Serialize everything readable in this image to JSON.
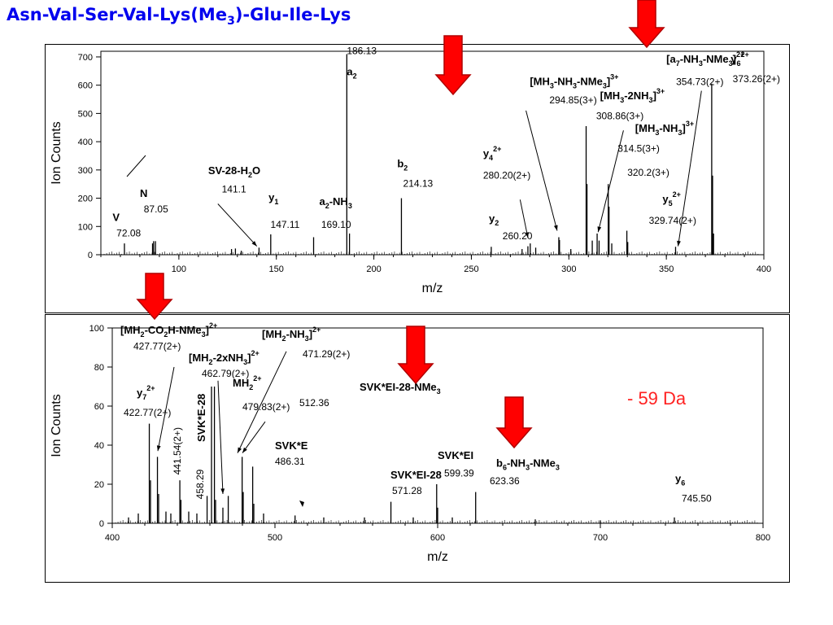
{
  "slide_title": {
    "p1": "Asn-Val-Ser-Val-Lys(Me",
    "sub": "3",
    "p2": ")-Glu-Ile-Lys"
  },
  "da_label": "- 59 Da",
  "chart_data": [
    {
      "type": "bar",
      "xlabel": "m/z",
      "ylabel": "Ion Counts",
      "xlim": [
        60,
        400
      ],
      "ylim": [
        0,
        720
      ],
      "xticks": [
        100,
        150,
        200,
        250,
        300,
        350,
        400
      ],
      "yticks": [
        0,
        100,
        200,
        300,
        400,
        500,
        600,
        700
      ],
      "peaks": [
        {
          "x": 72.08,
          "y": 40
        },
        {
          "x": 86.5,
          "y": 40
        },
        {
          "x": 87.05,
          "y": 48
        },
        {
          "x": 88,
          "y": 48
        },
        {
          "x": 127,
          "y": 20
        },
        {
          "x": 129,
          "y": 22
        },
        {
          "x": 132,
          "y": 14
        },
        {
          "x": 141.1,
          "y": 25
        },
        {
          "x": 147.11,
          "y": 72
        },
        {
          "x": 169.1,
          "y": 62
        },
        {
          "x": 186.13,
          "y": 710
        },
        {
          "x": 187.5,
          "y": 75
        },
        {
          "x": 214.13,
          "y": 200
        },
        {
          "x": 260.2,
          "y": 28
        },
        {
          "x": 276,
          "y": 20
        },
        {
          "x": 279,
          "y": 30
        },
        {
          "x": 280.2,
          "y": 40
        },
        {
          "x": 283,
          "y": 25
        },
        {
          "x": 294.85,
          "y": 62
        },
        {
          "x": 295.2,
          "y": 52
        },
        {
          "x": 301,
          "y": 20
        },
        {
          "x": 308.86,
          "y": 455
        },
        {
          "x": 309.3,
          "y": 250
        },
        {
          "x": 312,
          "y": 50
        },
        {
          "x": 314.5,
          "y": 75
        },
        {
          "x": 315.5,
          "y": 50
        },
        {
          "x": 320.2,
          "y": 250
        },
        {
          "x": 320.6,
          "y": 170
        },
        {
          "x": 322,
          "y": 40
        },
        {
          "x": 329.74,
          "y": 85
        },
        {
          "x": 330.2,
          "y": 45
        },
        {
          "x": 354.73,
          "y": 28
        },
        {
          "x": 373.26,
          "y": 605
        },
        {
          "x": 373.7,
          "y": 280
        },
        {
          "x": 374.2,
          "y": 75
        }
      ],
      "annotations": [
        {
          "text": "186.13",
          "x": 186.13,
          "y": 710,
          "kind": "value"
        },
        {
          "text": "a",
          "sub": "2",
          "x": 186.13,
          "y": 635,
          "kind": "label"
        },
        {
          "text": "[MH",
          "sub": "3",
          "text2": "-NH",
          "sub2": "3",
          "text3": "-NMe",
          "sub3": "3",
          "text4": "]",
          "sup": "3+",
          "x": 280,
          "y": 600,
          "kind": "label"
        },
        {
          "text": "294.85(3+)",
          "x": 290,
          "y": 535,
          "kind": "value"
        },
        {
          "text": "[a",
          "sub": "7",
          "text2": "-NH",
          "sub2": "3",
          "text3": "-NMe",
          "sub3": "3",
          "text4": "]",
          "sup": "2+",
          "x": 350,
          "y": 680,
          "kind": "label"
        },
        {
          "text": "354.73(2+)",
          "x": 355,
          "y": 600,
          "kind": "value"
        },
        {
          "text": "y",
          "sub": "6",
          "sup": "2+",
          "x": 383,
          "y": 680,
          "kind": "label"
        },
        {
          "text": "373.26(2+)",
          "x": 384,
          "y": 610,
          "kind": "value"
        },
        {
          "text": "[MH",
          "sub": "3",
          "text2": "-2NH",
          "sub2": "3",
          "text4": "]",
          "sup": "3+",
          "x": 316,
          "y": 550,
          "kind": "label"
        },
        {
          "text": "308.86(3+)",
          "x": 314,
          "y": 480,
          "kind": "value"
        },
        {
          "text": "[MH",
          "sub": "3",
          "text2": "-NH",
          "sub2": "3",
          "text4": "]",
          "sup": "3+",
          "x": 334,
          "y": 435,
          "kind": "label"
        },
        {
          "text": "314.5(3+)",
          "x": 325,
          "y": 365,
          "kind": "value"
        },
        {
          "text": "320.2(3+)",
          "x": 330,
          "y": 280,
          "kind": "value"
        },
        {
          "text": "y",
          "sub": "4",
          "sup": "2+",
          "x": 256,
          "y": 345,
          "kind": "label"
        },
        {
          "text": "280.20(2+)",
          "x": 256,
          "y": 270,
          "kind": "value"
        },
        {
          "text": "b",
          "sub": "2",
          "x": 212,
          "y": 310,
          "kind": "label"
        },
        {
          "text": "214.13",
          "x": 215,
          "y": 240,
          "kind": "value"
        },
        {
          "text": "y",
          "sub": "5",
          "sup": "2+",
          "x": 348,
          "y": 185,
          "kind": "label"
        },
        {
          "text": "329.74(2+)",
          "x": 341,
          "y": 110,
          "kind": "value"
        },
        {
          "text": "y",
          "sub": "2",
          "x": 259,
          "y": 115,
          "kind": "label"
        },
        {
          "text": "260.20",
          "x": 266,
          "y": 55,
          "kind": "value"
        },
        {
          "text": "SV-28-H",
          "sub": "2",
          "text2": "O",
          "x": 115,
          "y": 285,
          "kind": "label"
        },
        {
          "text": "141.1",
          "x": 122,
          "y": 220,
          "kind": "value"
        },
        {
          "text": "y",
          "sub": "1",
          "x": 146,
          "y": 190,
          "kind": "label"
        },
        {
          "text": "147.11",
          "x": 147,
          "y": 95,
          "kind": "value"
        },
        {
          "text": "a",
          "sub": "2",
          "text2": "-NH",
          "sub2": "3",
          "x": 172,
          "y": 175,
          "kind": "label"
        },
        {
          "text": "169.10",
          "x": 173,
          "y": 95,
          "kind": "value"
        },
        {
          "text": "N",
          "x": 80,
          "y": 205,
          "kind": "label"
        },
        {
          "text": "87.05",
          "x": 82,
          "y": 150,
          "kind": "value"
        },
        {
          "text": "V",
          "x": 66,
          "y": 120,
          "kind": "label"
        },
        {
          "text": "72.08",
          "x": 68,
          "y": 65,
          "kind": "value"
        }
      ]
    },
    {
      "type": "bar",
      "xlabel": "m/z",
      "ylabel": "Ion Counts",
      "xlim": [
        400,
        800
      ],
      "ylim": [
        0,
        100
      ],
      "xticks": [
        400,
        500,
        600,
        700,
        800
      ],
      "yticks": [
        0,
        20,
        40,
        60,
        80,
        100
      ],
      "peaks": [
        {
          "x": 410,
          "y": 3
        },
        {
          "x": 416,
          "y": 5
        },
        {
          "x": 422.77,
          "y": 51
        },
        {
          "x": 423.5,
          "y": 22
        },
        {
          "x": 427.77,
          "y": 34
        },
        {
          "x": 428.5,
          "y": 15
        },
        {
          "x": 433,
          "y": 6
        },
        {
          "x": 436,
          "y": 5
        },
        {
          "x": 441.54,
          "y": 22
        },
        {
          "x": 442.2,
          "y": 12
        },
        {
          "x": 447,
          "y": 6
        },
        {
          "x": 452,
          "y": 5
        },
        {
          "x": 458.29,
          "y": 14
        },
        {
          "x": 461,
          "y": 70
        },
        {
          "x": 462.79,
          "y": 70
        },
        {
          "x": 463.5,
          "y": 12
        },
        {
          "x": 468,
          "y": 8
        },
        {
          "x": 471.29,
          "y": 14
        },
        {
          "x": 479.83,
          "y": 34
        },
        {
          "x": 480.5,
          "y": 16
        },
        {
          "x": 486.31,
          "y": 29
        },
        {
          "x": 487,
          "y": 10
        },
        {
          "x": 493,
          "y": 5
        },
        {
          "x": 512.36,
          "y": 4
        },
        {
          "x": 530,
          "y": 3
        },
        {
          "x": 555,
          "y": 3
        },
        {
          "x": 571.28,
          "y": 11
        },
        {
          "x": 585,
          "y": 3
        },
        {
          "x": 599.39,
          "y": 20
        },
        {
          "x": 600,
          "y": 8
        },
        {
          "x": 609,
          "y": 3
        },
        {
          "x": 623.36,
          "y": 16
        },
        {
          "x": 660,
          "y": 2
        },
        {
          "x": 700,
          "y": 1.5
        },
        {
          "x": 745.5,
          "y": 3
        }
      ],
      "annotations": [
        {
          "text": "[MH",
          "sub": "2",
          "text2": "-CO",
          "sub2": "2",
          "text3": "H-NMe",
          "sub3": "3",
          "text4": "]",
          "sup": "2+",
          "x": 405,
          "y": 97,
          "kind": "label"
        },
        {
          "text": "427.77(2+)",
          "x": 413,
          "y": 89,
          "kind": "value"
        },
        {
          "text": "[MH",
          "sub": "2",
          "text2": "-2xNH",
          "sub2": "3",
          "text4": "]",
          "sup": "2+",
          "x": 447,
          "y": 83,
          "kind": "label"
        },
        {
          "text": "462.79(2+)",
          "x": 455,
          "y": 75,
          "kind": "value"
        },
        {
          "text": "[MH",
          "sub": "2",
          "text2": "-NH",
          "sub2": "3",
          "text4": "]",
          "sup": "2+",
          "x": 492,
          "y": 95,
          "kind": "label"
        },
        {
          "text": "471.29(2+)",
          "x": 517,
          "y": 85,
          "kind": "value"
        },
        {
          "text": "MH",
          "sub": "2",
          "sup": "2+",
          "x": 474,
          "y": 70,
          "kind": "label"
        },
        {
          "text": "479.83(2+)",
          "x": 480,
          "y": 58,
          "kind": "value"
        },
        {
          "text": "SVK*EI-28-NMe",
          "sub": "3",
          "x": 552,
          "y": 68,
          "kind": "label"
        },
        {
          "text": "512.36",
          "x": 515,
          "y": 60,
          "kind": "value"
        },
        {
          "text": "y",
          "sub": "7",
          "sup": "2+",
          "x": 415,
          "y": 65,
          "kind": "label"
        },
        {
          "text": "422.77(2+)",
          "x": 407,
          "y": 55,
          "kind": "value"
        },
        {
          "text": "SVK*E",
          "x": 500,
          "y": 38,
          "kind": "label"
        },
        {
          "text": "486.31",
          "x": 500,
          "y": 30,
          "kind": "value"
        },
        {
          "text": "SVK*EI",
          "x": 600,
          "y": 33,
          "kind": "label"
        },
        {
          "text": "599.39",
          "x": 604,
          "y": 24,
          "kind": "value"
        },
        {
          "text": "SVK*EI-28",
          "x": 571,
          "y": 23,
          "kind": "label"
        },
        {
          "text": "571.28",
          "x": 572,
          "y": 15,
          "kind": "value"
        },
        {
          "text": "b",
          "sub": "6",
          "text2": "-NH",
          "sub2": "3",
          "text3": "-NMe",
          "sub3": "3",
          "x": 636,
          "y": 29,
          "kind": "label"
        },
        {
          "text": "623.36",
          "x": 632,
          "y": 20,
          "kind": "value"
        },
        {
          "text": "y",
          "sub": "6",
          "x": 746,
          "y": 21,
          "kind": "label"
        },
        {
          "text": "745.50",
          "x": 750,
          "y": 11,
          "kind": "value"
        }
      ],
      "rotated_annotations": [
        {
          "text": "441.54(2+)",
          "x": 442,
          "y": 37,
          "kind": "value"
        },
        {
          "text": "458.29",
          "x": 456,
          "y": 20,
          "kind": "value"
        },
        {
          "text": "SVK*E-28",
          "x": 457,
          "y": 54,
          "kind": "label"
        }
      ]
    }
  ]
}
